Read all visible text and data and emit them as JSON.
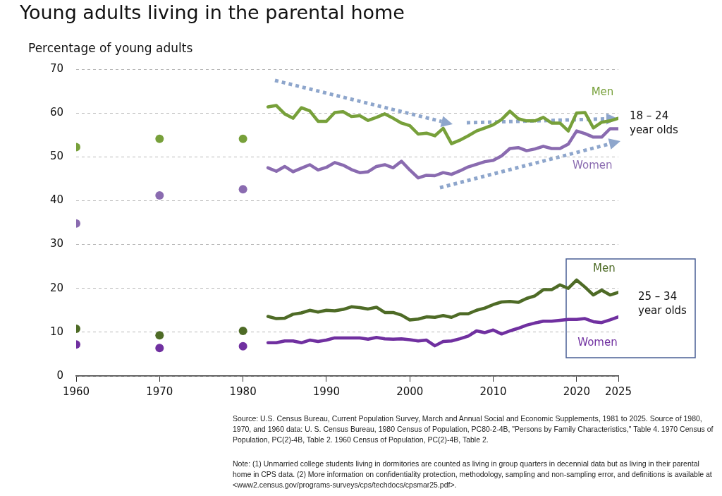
{
  "chart_data": {
    "type": "line",
    "title": "Young adults living in the parental home",
    "ylabel": "Percentage of young adults",
    "xlim": [
      1960,
      2025
    ],
    "xticks": [
      1960,
      1970,
      1980,
      1990,
      2000,
      2010,
      2020,
      2025
    ],
    "ylim": [
      0,
      70
    ],
    "yticks": [
      0,
      10,
      20,
      30,
      40,
      50,
      60,
      70
    ],
    "grid": "y",
    "legend": false,
    "series": [
      {
        "name": "Men",
        "type": "line",
        "color": "#77a03a",
        "x": [
          1983,
          1984,
          1985,
          1986,
          1987,
          1988,
          1989,
          1990,
          1991,
          1992,
          1993,
          1994,
          1995,
          1996,
          1997,
          1998,
          1999,
          2000,
          2001,
          2002,
          2003,
          2004,
          2005,
          2006,
          2007,
          2008,
          2009,
          2010,
          2011,
          2012,
          2013,
          2014,
          2015,
          2016,
          2017,
          2018,
          2019,
          2020,
          2021,
          2022,
          2023,
          2024,
          2025
        ],
        "values": [
          61.4,
          61.7,
          59.8,
          58.8,
          61.2,
          60.5,
          58.1,
          58.1,
          60.1,
          60.3,
          59.2,
          59.4,
          58.3,
          59.0,
          59.8,
          58.8,
          57.7,
          57.1,
          55.2,
          55.4,
          54.8,
          56.5,
          53.0,
          53.8,
          54.8,
          55.9,
          56.6,
          57.3,
          58.5,
          60.4,
          58.7,
          58.2,
          58.2,
          59.0,
          57.7,
          57.7,
          55.9,
          60.0,
          60.1,
          56.6,
          57.9,
          58.2,
          58.8
        ]
      },
      {
        "name": "Women",
        "type": "line",
        "color": "#8a6bb0",
        "x": [
          1983,
          1984,
          1985,
          1986,
          1987,
          1988,
          1989,
          1990,
          1991,
          1992,
          1993,
          1994,
          1995,
          1996,
          1997,
          1998,
          1999,
          2000,
          2001,
          2002,
          2003,
          2004,
          2005,
          2006,
          2007,
          2008,
          2009,
          2010,
          2011,
          2012,
          2013,
          2014,
          2015,
          2016,
          2017,
          2018,
          2019,
          2020,
          2021,
          2022,
          2023,
          2024,
          2025
        ],
        "values": [
          47.5,
          46.7,
          47.8,
          46.6,
          47.4,
          48.2,
          47.0,
          47.6,
          48.7,
          48.1,
          47.1,
          46.4,
          46.6,
          47.8,
          48.2,
          47.5,
          49.0,
          47.0,
          45.2,
          45.8,
          45.7,
          46.4,
          46.0,
          46.8,
          47.7,
          48.3,
          48.9,
          49.2,
          50.2,
          51.9,
          52.1,
          51.4,
          51.8,
          52.4,
          51.9,
          51.9,
          52.9,
          55.9,
          55.3,
          54.5,
          54.5,
          56.4,
          56.4
        ]
      },
      {
        "name": "Men",
        "type": "line",
        "color": "#4e6b26",
        "x": [
          1983,
          1984,
          1985,
          1986,
          1987,
          1988,
          1989,
          1990,
          1991,
          1992,
          1993,
          1994,
          1995,
          1996,
          1997,
          1998,
          1999,
          2000,
          2001,
          2002,
          2003,
          2004,
          2005,
          2006,
          2007,
          2008,
          2009,
          2010,
          2011,
          2012,
          2013,
          2014,
          2015,
          2016,
          2017,
          2018,
          2019,
          2020,
          2021,
          2022,
          2023,
          2024,
          2025
        ],
        "values": [
          13.6,
          13.1,
          13.2,
          14.1,
          14.4,
          15.0,
          14.6,
          15.0,
          14.9,
          15.2,
          15.8,
          15.6,
          15.3,
          15.7,
          14.5,
          14.5,
          13.9,
          12.8,
          13.0,
          13.5,
          13.4,
          13.8,
          13.4,
          14.2,
          14.2,
          15.0,
          15.5,
          16.3,
          16.9,
          17.0,
          16.8,
          17.7,
          18.3,
          19.7,
          19.7,
          20.8,
          20.0,
          21.9,
          20.3,
          18.5,
          19.6,
          18.5,
          19.1
        ]
      },
      {
        "name": "Women",
        "type": "line",
        "color": "#7030a0",
        "x": [
          1983,
          1984,
          1985,
          1986,
          1987,
          1988,
          1989,
          1990,
          1991,
          1992,
          1993,
          1994,
          1995,
          1996,
          1997,
          1998,
          1999,
          2000,
          2001,
          2002,
          2003,
          2004,
          2005,
          2006,
          2007,
          2008,
          2009,
          2010,
          2011,
          2012,
          2013,
          2014,
          2015,
          2016,
          2017,
          2018,
          2019,
          2020,
          2021,
          2022,
          2023,
          2024,
          2025
        ],
        "values": [
          7.6,
          7.6,
          8.0,
          8.0,
          7.6,
          8.2,
          7.9,
          8.2,
          8.7,
          8.7,
          8.7,
          8.7,
          8.4,
          8.8,
          8.5,
          8.4,
          8.5,
          8.3,
          8.0,
          8.2,
          6.9,
          7.9,
          8.0,
          8.5,
          9.1,
          10.3,
          9.9,
          10.5,
          9.6,
          10.3,
          10.9,
          11.6,
          12.1,
          12.5,
          12.5,
          12.7,
          12.9,
          12.9,
          13.1,
          12.4,
          12.2,
          12.8,
          13.5
        ]
      },
      {
        "type": "scatter",
        "color": "#77a03a",
        "x": [
          1960,
          1970,
          1980
        ],
        "values": [
          52.2,
          54.1,
          54.1
        ]
      },
      {
        "type": "scatter",
        "color": "#8a6bb0",
        "x": [
          1960,
          1970,
          1980
        ],
        "values": [
          34.8,
          41.2,
          42.6
        ]
      },
      {
        "type": "scatter",
        "color": "#4e6b26",
        "x": [
          1960,
          1970,
          1980
        ],
        "values": [
          10.8,
          9.3,
          10.3
        ]
      },
      {
        "type": "scatter",
        "color": "#7030a0",
        "x": [
          1960,
          1970,
          1980
        ],
        "values": [
          7.2,
          6.4,
          6.8
        ]
      }
    ],
    "annotations": [
      "18 – 24 year olds",
      "25 – 34 year olds",
      "Source: U.S. Census Bureau, Current Population Survey, March and Annual Social and Economic Supplements, 1981 to 2025. Source of 1980, 1970, and 1960 data:  U. S. Census Bureau, 1980 Census of Population, PC80-2-4B, \"Persons by Family Characteristics,\" Table 4.  1970 Census of Population, PC(2)-4B, Table 2.  1960 Census of Population, PC(2)-4B, Table 2.",
      "Note: (1) Unmarried college students living in dormitories are counted as living in group quarters in decennial data but as living in their parental home in CPS data. (2) More information on confidentiality protection, methodology, sampling and non-sampling error, and definitions is available at <www2.census.gov/programs-surveys/cps/techdocs/cpsmar25.pdf>."
    ]
  }
}
